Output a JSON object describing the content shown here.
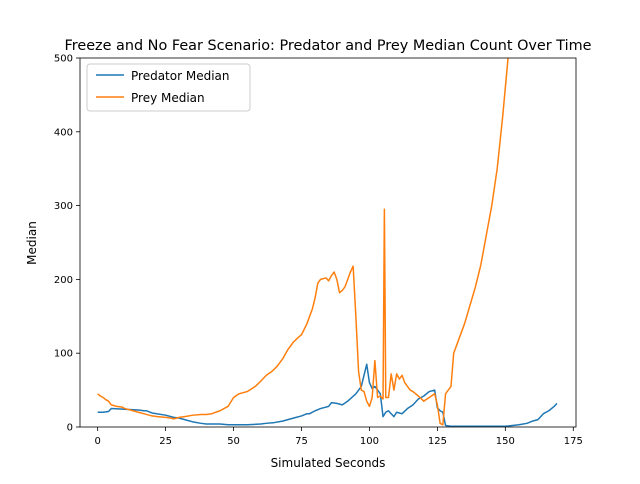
{
  "chart_data": {
    "type": "line",
    "title": "Freeze and No Fear Scenario: Predator and Prey Median Count Over Time",
    "xlabel": "Simulated Seconds",
    "ylabel": "Median",
    "xlim": [
      -6.5,
      176
    ],
    "ylim": [
      0,
      500
    ],
    "xticks": [
      0,
      25,
      50,
      75,
      100,
      125,
      150,
      175
    ],
    "yticks": [
      0,
      100,
      200,
      300,
      400,
      500
    ],
    "grid": false,
    "legend_position": "upper-left",
    "series": [
      {
        "name": "Predator Median",
        "color": "#1f77b4",
        "points": [
          [
            0,
            20
          ],
          [
            2,
            20
          ],
          [
            4,
            21
          ],
          [
            5,
            25
          ],
          [
            10,
            24
          ],
          [
            15,
            23
          ],
          [
            17,
            22
          ],
          [
            18,
            22
          ],
          [
            20,
            19
          ],
          [
            25,
            16
          ],
          [
            28,
            13
          ],
          [
            30,
            12
          ],
          [
            33,
            9
          ],
          [
            35,
            7
          ],
          [
            38,
            5
          ],
          [
            40,
            4
          ],
          [
            45,
            4
          ],
          [
            48,
            3
          ],
          [
            50,
            3
          ],
          [
            55,
            3
          ],
          [
            60,
            4
          ],
          [
            62,
            5
          ],
          [
            65,
            6
          ],
          [
            68,
            8
          ],
          [
            70,
            10
          ],
          [
            72,
            12
          ],
          [
            75,
            15
          ],
          [
            77,
            18
          ],
          [
            78,
            18
          ],
          [
            80,
            22
          ],
          [
            82,
            25
          ],
          [
            85,
            28
          ],
          [
            86,
            33
          ],
          [
            88,
            32
          ],
          [
            90,
            30
          ],
          [
            92,
            35
          ],
          [
            95,
            45
          ],
          [
            97,
            55
          ],
          [
            98,
            70
          ],
          [
            99,
            85
          ],
          [
            100,
            60
          ],
          [
            101,
            52
          ],
          [
            102,
            55
          ],
          [
            103,
            50
          ],
          [
            104,
            45
          ],
          [
            105,
            14
          ],
          [
            106,
            20
          ],
          [
            107,
            22
          ],
          [
            108,
            18
          ],
          [
            109,
            14
          ],
          [
            110,
            20
          ],
          [
            112,
            18
          ],
          [
            114,
            25
          ],
          [
            116,
            30
          ],
          [
            118,
            38
          ],
          [
            120,
            42
          ],
          [
            122,
            48
          ],
          [
            124,
            50
          ],
          [
            125,
            26
          ],
          [
            126,
            22
          ],
          [
            127,
            20
          ],
          [
            128,
            2
          ],
          [
            130,
            1
          ],
          [
            135,
            1
          ],
          [
            140,
            1
          ],
          [
            145,
            1
          ],
          [
            150,
            1
          ],
          [
            155,
            3
          ],
          [
            158,
            5
          ],
          [
            160,
            8
          ],
          [
            162,
            10
          ],
          [
            164,
            18
          ],
          [
            166,
            22
          ],
          [
            168,
            28
          ],
          [
            169,
            32
          ]
        ]
      },
      {
        "name": "Prey Median",
        "color": "#ff7f0e",
        "points": [
          [
            0,
            45
          ],
          [
            1,
            42
          ],
          [
            2,
            40
          ],
          [
            3,
            37
          ],
          [
            4,
            35
          ],
          [
            5,
            30
          ],
          [
            7,
            28
          ],
          [
            9,
            27
          ],
          [
            10,
            25
          ],
          [
            12,
            23
          ],
          [
            15,
            20
          ],
          [
            18,
            17
          ],
          [
            20,
            15
          ],
          [
            22,
            14
          ],
          [
            25,
            13
          ],
          [
            27,
            12
          ],
          [
            28,
            11
          ],
          [
            30,
            13
          ],
          [
            32,
            14
          ],
          [
            35,
            16
          ],
          [
            38,
            17
          ],
          [
            40,
            17
          ],
          [
            42,
            18
          ],
          [
            45,
            22
          ],
          [
            48,
            28
          ],
          [
            50,
            40
          ],
          [
            52,
            45
          ],
          [
            55,
            48
          ],
          [
            58,
            55
          ],
          [
            60,
            62
          ],
          [
            62,
            70
          ],
          [
            64,
            75
          ],
          [
            66,
            82
          ],
          [
            68,
            92
          ],
          [
            70,
            105
          ],
          [
            72,
            115
          ],
          [
            74,
            122
          ],
          [
            75,
            125
          ],
          [
            77,
            140
          ],
          [
            79,
            160
          ],
          [
            80,
            175
          ],
          [
            81,
            195
          ],
          [
            82,
            200
          ],
          [
            84,
            202
          ],
          [
            85,
            198
          ],
          [
            86,
            205
          ],
          [
            87,
            210
          ],
          [
            88,
            200
          ],
          [
            89,
            182
          ],
          [
            90,
            185
          ],
          [
            91,
            190
          ],
          [
            92,
            200
          ],
          [
            93,
            210
          ],
          [
            94,
            218
          ],
          [
            95,
            150
          ],
          [
            96,
            75
          ],
          [
            97,
            50
          ],
          [
            98,
            48
          ],
          [
            99,
            35
          ],
          [
            100,
            28
          ],
          [
            101,
            40
          ],
          [
            102,
            90
          ],
          [
            103,
            40
          ],
          [
            104,
            42
          ],
          [
            105,
            38
          ],
          [
            105.5,
            295
          ],
          [
            106,
            40
          ],
          [
            107,
            40
          ],
          [
            108,
            72
          ],
          [
            109,
            50
          ],
          [
            110,
            72
          ],
          [
            111,
            65
          ],
          [
            112,
            70
          ],
          [
            113,
            60
          ],
          [
            114,
            55
          ],
          [
            115,
            50
          ],
          [
            116,
            48
          ],
          [
            118,
            42
          ],
          [
            120,
            35
          ],
          [
            122,
            40
          ],
          [
            124,
            45
          ],
          [
            125,
            30
          ],
          [
            126,
            5
          ],
          [
            127,
            3
          ],
          [
            128,
            45
          ],
          [
            129,
            50
          ],
          [
            130,
            55
          ],
          [
            131,
            100
          ],
          [
            132,
            110
          ],
          [
            133,
            120
          ],
          [
            135,
            140
          ],
          [
            137,
            165
          ],
          [
            139,
            190
          ],
          [
            141,
            220
          ],
          [
            143,
            260
          ],
          [
            145,
            300
          ],
          [
            147,
            350
          ],
          [
            149,
            420
          ],
          [
            151,
            500
          ]
        ]
      }
    ]
  }
}
